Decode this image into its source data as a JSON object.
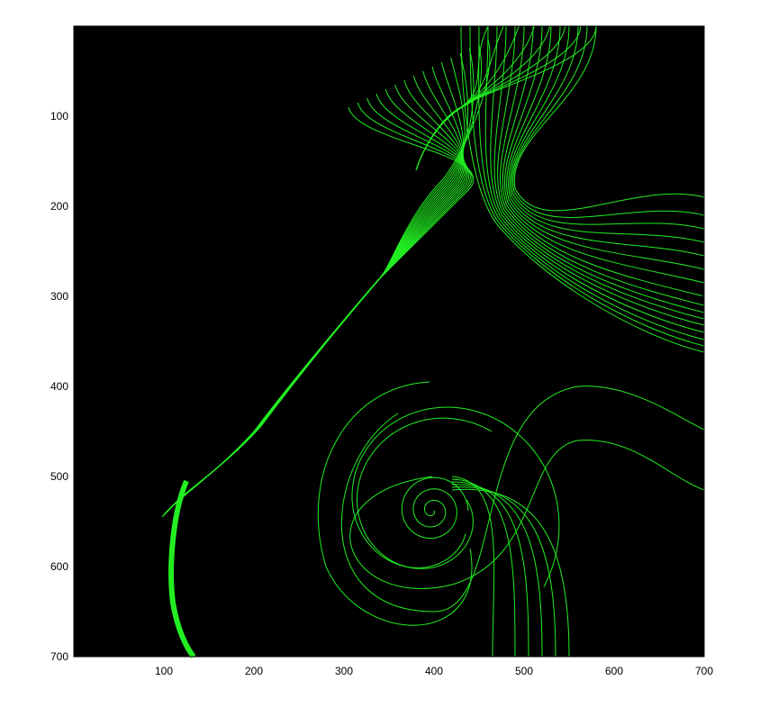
{
  "chart_data": {
    "type": "line",
    "title": "",
    "xlabel": "",
    "ylabel": "",
    "xlim": [
      0,
      700
    ],
    "ylim": [
      0,
      700
    ],
    "y_direction": "reversed",
    "grid": false,
    "legend": "none",
    "background_color": "#000000",
    "line_color": "#22ee22",
    "x_ticks": [
      100,
      200,
      300,
      400,
      500,
      600,
      700
    ],
    "y_ticks": [
      100,
      200,
      300,
      400,
      500,
      600,
      700
    ],
    "focus_center": [
      398,
      538
    ],
    "saddle_point": [
      427,
      88
    ],
    "families": [
      {
        "description": "diagonal streamlines converging into a bundle",
        "start": [
          [
            305,
            90
          ],
          [
            320,
            85
          ],
          [
            330,
            80
          ],
          [
            340,
            75
          ],
          [
            350,
            70
          ],
          [
            360,
            65
          ],
          [
            370,
            60
          ],
          [
            380,
            55
          ],
          [
            390,
            50
          ],
          [
            400,
            45
          ],
          [
            410,
            40
          ],
          [
            420,
            35
          ],
          [
            430,
            30
          ],
          [
            440,
            25
          ],
          [
            450,
            20
          ],
          [
            460,
            15
          ]
        ],
        "via": [
          [
            440,
            180
          ],
          [
            420,
            200
          ],
          [
            400,
            230
          ],
          [
            380,
            260
          ],
          [
            350,
            290
          ],
          [
            330,
            310
          ],
          [
            310,
            330
          ],
          [
            290,
            350
          ],
          [
            270,
            370
          ],
          [
            250,
            390
          ],
          [
            230,
            410
          ],
          [
            210,
            430
          ],
          [
            190,
            450
          ],
          [
            170,
            470
          ],
          [
            150,
            490
          ],
          [
            130,
            510
          ]
        ],
        "end": [
          112,
          620
        ]
      },
      {
        "description": "upper right streamlines",
        "x_end": 700,
        "y_end": [
          190,
          210,
          225,
          240,
          255,
          270,
          285,
          300,
          310,
          318,
          325,
          332,
          340,
          348,
          355,
          362
        ]
      },
      {
        "description": "spiral streamlines around focus",
        "count": 6
      },
      {
        "description": "fan streamlines exiting bottom",
        "bottom_x": [
          465,
          490,
          505,
          520,
          535,
          550
        ]
      }
    ]
  }
}
